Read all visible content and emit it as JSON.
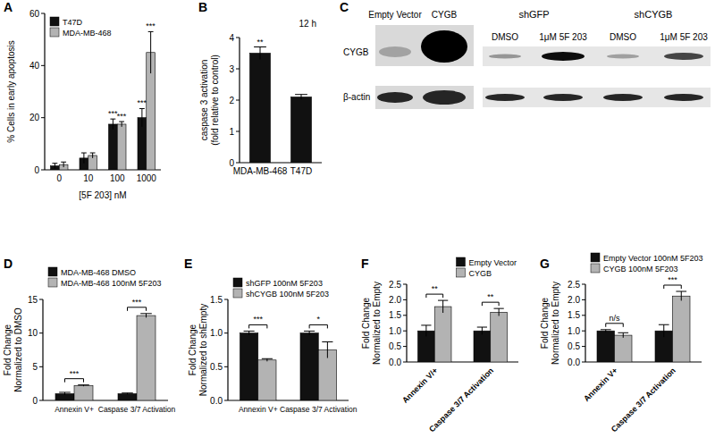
{
  "chart_data": [
    {
      "panel": "A",
      "type": "bar",
      "x_label": "[5F 203] nM",
      "y_label": [
        "% Cells in early apoptosis"
      ],
      "categories": [
        "0",
        "10",
        "100",
        "1000"
      ],
      "series": [
        {
          "name": "T47D",
          "color": "#111111",
          "values": [
            1.5,
            4.5,
            17.5,
            20
          ],
          "errors": [
            1,
            2,
            2,
            3.5
          ]
        },
        {
          "name": "MDA-MB-468",
          "color": "#b3b3b3",
          "values": [
            2,
            5.5,
            17.5,
            45
          ],
          "errors": [
            1,
            1,
            1,
            8
          ]
        }
      ],
      "ylim": [
        0,
        60
      ],
      "yticks": [
        0,
        20,
        40,
        60
      ],
      "legend": "upper left",
      "annotations": [
        {
          "text": "***",
          "category": 2,
          "series": 0
        },
        {
          "text": "***",
          "category": 2,
          "series": 1
        },
        {
          "text": "***",
          "category": 3,
          "series": 0
        },
        {
          "text": "***",
          "category": 3,
          "series": 1
        }
      ]
    },
    {
      "panel": "B",
      "type": "bar",
      "subtitle": "12 h",
      "y_label": [
        "caspase 3 activation",
        "(fold relative to control)"
      ],
      "categories": [
        "MDA-MB-468",
        "T47D"
      ],
      "series": [
        {
          "color": "#111111",
          "values": [
            3.5,
            2.1
          ],
          "errors": [
            0.2,
            0.08
          ]
        }
      ],
      "ylim": [
        0,
        4
      ],
      "yticks": [
        0,
        1,
        2,
        3,
        4
      ],
      "annotations": [
        {
          "text": "**",
          "category": 0
        }
      ]
    },
    {
      "panel": "D",
      "type": "bar",
      "y_label": [
        "Fold Change",
        "Normalized to DMSO"
      ],
      "categories": [
        "Annexin V+",
        "Caspase 3/7 Activation"
      ],
      "series": [
        {
          "name": "MDA-MB-468 DMSO",
          "color": "#111111",
          "values": [
            1,
            1
          ],
          "errors": [
            0.2,
            0.1
          ]
        },
        {
          "name": "MDA-MB-468 100nM 5F203",
          "color": "#b3b3b3",
          "values": [
            2.2,
            12.6
          ],
          "errors": [
            0.1,
            0.3
          ]
        }
      ],
      "ylim": [
        0,
        15
      ],
      "yticks": [
        0,
        5,
        10,
        15
      ],
      "legend": "upper left",
      "annotations": [
        {
          "text": "***",
          "category": 0
        },
        {
          "text": "***",
          "category": 1
        }
      ]
    },
    {
      "panel": "E",
      "type": "bar",
      "y_label": [
        "Fold Change",
        "Normalized to shEmpty"
      ],
      "categories": [
        "Annexin V+",
        "Caspase 3/7 Activation"
      ],
      "series": [
        {
          "name": "shGFP 100nM 5F203",
          "color": "#111111",
          "values": [
            1,
            1
          ],
          "errors": [
            0.03,
            0.03
          ]
        },
        {
          "name": "shCYGB 100nM 5F203",
          "color": "#b3b3b3",
          "values": [
            0.6,
            0.75
          ],
          "errors": [
            0.02,
            0.12
          ]
        }
      ],
      "ylim": [
        0,
        1.5
      ],
      "yticks": [
        {
          "value": 0,
          "label": "0.0"
        },
        0.5,
        {
          "value": 1,
          "label": "1.0"
        },
        1.5
      ],
      "legend": "upper left",
      "annotations": [
        {
          "text": "***",
          "category": 0
        },
        {
          "text": "*",
          "category": 1
        }
      ]
    },
    {
      "panel": "F",
      "type": "bar",
      "y_label": [
        "Fold Change",
        "Normalized to Empty"
      ],
      "categories": [
        "Annexin V/+",
        "Caspase 3/7 Activation"
      ],
      "series": [
        {
          "name": "Empty Vector",
          "color": "#111111",
          "values": [
            1,
            1
          ],
          "errors": [
            0.18,
            0.12
          ]
        },
        {
          "name": "CYGB",
          "color": "#b3b3b3",
          "values": [
            1.78,
            1.6
          ],
          "errors": [
            0.2,
            0.12
          ]
        }
      ],
      "ylim": [
        0,
        2.5
      ],
      "yticks": [
        {
          "value": 0,
          "label": "0.0"
        },
        0.5,
        {
          "value": 1,
          "label": "1.0"
        },
        1.5,
        {
          "value": 2,
          "label": "2.0"
        },
        2.5
      ],
      "legend": "upper right",
      "annotations": [
        {
          "text": "**",
          "category": 0
        },
        {
          "text": "**",
          "category": 1
        }
      ]
    },
    {
      "panel": "G",
      "type": "bar",
      "y_label": [
        "Fold Change",
        "Normalized to Empty"
      ],
      "categories": [
        "Annexin V+",
        "Caspase 3/7 Activation"
      ],
      "series": [
        {
          "name": "Empty Vector 100nM 5F203",
          "color": "#111111",
          "values": [
            1,
            1
          ],
          "errors": [
            0.04,
            0.2
          ]
        },
        {
          "name": "CYGB 100nM 5F203",
          "color": "#b3b3b3",
          "values": [
            0.86,
            2.12
          ],
          "errors": [
            0.08,
            0.15
          ]
        }
      ],
      "ylim": [
        0,
        2.5
      ],
      "yticks": [
        {
          "value": 0,
          "label": "0.0"
        },
        0.5,
        {
          "value": 1,
          "label": "1.0"
        },
        1.5,
        {
          "value": 2,
          "label": "2.0"
        },
        2.5
      ],
      "legend": "upper left",
      "annotations": [
        {
          "text": "n/s",
          "category": 0
        },
        {
          "text": "***",
          "category": 1
        }
      ]
    }
  ],
  "blot": {
    "panel": "C",
    "groups": [
      "shGFP",
      "shCYGB"
    ],
    "lanes": [
      "Empty Vector",
      "CYGB",
      "DMSO",
      "1μM 5F 203",
      "DMSO",
      "1μM 5F 203"
    ],
    "rows": [
      "CYGB",
      "β-actin"
    ]
  }
}
